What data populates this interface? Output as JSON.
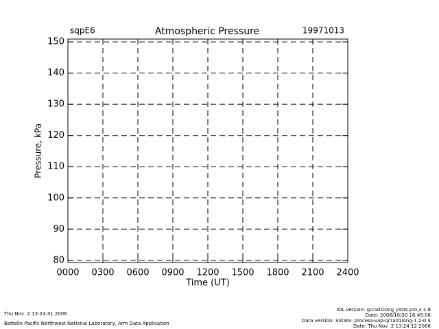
{
  "chart_data": {
    "type": "line",
    "site": "sqpE6",
    "title": "Atmospheric Pressure",
    "date": "19971013",
    "x_label": "Time (UT)",
    "y_label": "Pressure, kPa",
    "xlim": [
      0,
      2400
    ],
    "xticks": [
      {
        "value": 0,
        "label": "0000"
      },
      {
        "value": 300,
        "label": "0300"
      },
      {
        "value": 600,
        "label": "0600"
      },
      {
        "value": 900,
        "label": "0900"
      },
      1200,
      1500,
      1800,
      2100,
      2400
    ],
    "ylim": [
      79.3,
      150.9
    ],
    "yticks": [
      80,
      90,
      100,
      110,
      120,
      130,
      140,
      150
    ],
    "grid": true,
    "series": []
  },
  "footer": {
    "left": [
      "Thu Nov  2 13:24:31 2006",
      "Battelle Pacific Northwest National Laboratory, Arm Data Application"
    ],
    "right": [
      "IDL version: qcrad1long_plots.pro,v 1.8",
      "Date: 2006/10/30 16:45:08",
      "Data version: $State: process-vap-qcrad1long-1.2-0 $",
      "Date: Thu Nov  2 13:24:12 2006"
    ]
  }
}
